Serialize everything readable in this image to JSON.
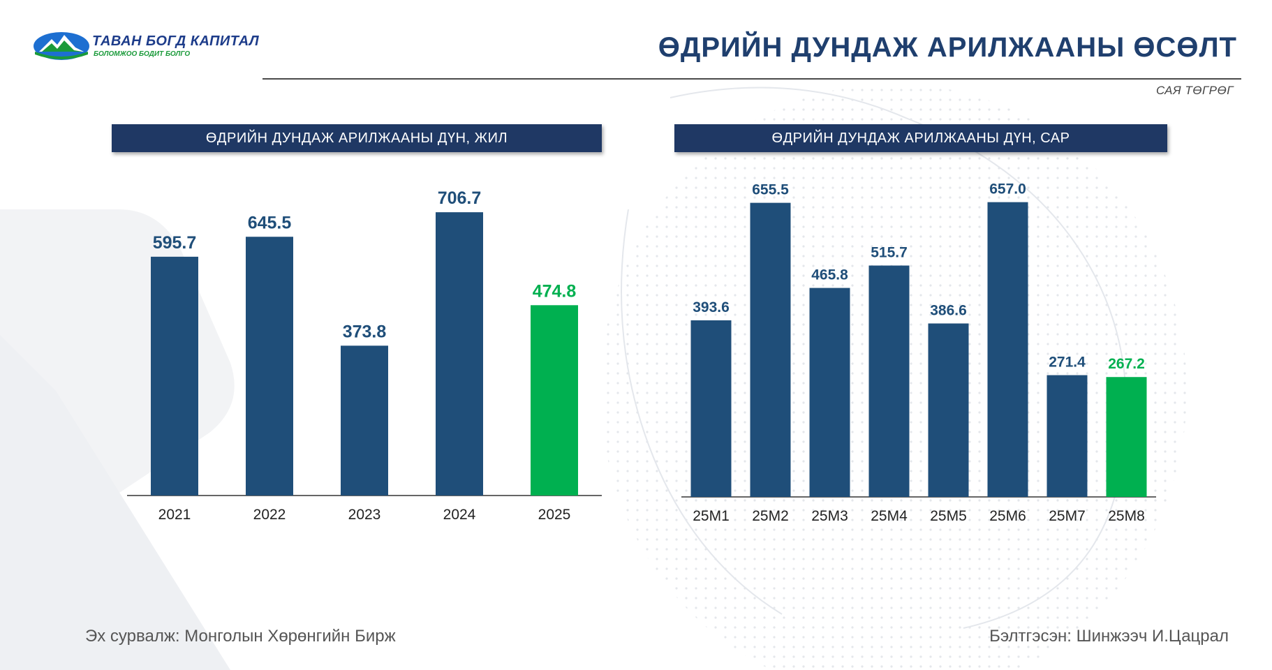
{
  "header": {
    "logo_main": "ТАВАН БОГД КАПИТАЛ",
    "logo_sub": "БОЛОМЖОО БОДИТ БОЛГО",
    "title": "ӨДРИЙН ДУНДАЖ АРИЛЖААНЫ ӨСӨЛТ",
    "unit": "САЯ ТӨГРӨГ"
  },
  "colors": {
    "navy": "#1f4e79",
    "green": "#00b050",
    "banner": "#1f3864",
    "title": "#1f3f6e"
  },
  "chart_data": [
    {
      "type": "bar",
      "title": "ӨДРИЙН ДУНДАЖ АРИЛЖААНЫ ДҮН, ЖИЛ",
      "categories": [
        "2021",
        "2022",
        "2023",
        "2024",
        "2025"
      ],
      "values": [
        595.7,
        645.5,
        373.8,
        706.7,
        474.8
      ],
      "labels": [
        "595.7",
        "645.5",
        "373.8",
        "706.7",
        "474.8"
      ],
      "highlight": [
        false,
        false,
        false,
        false,
        true
      ],
      "ylim": [
        0,
        780
      ],
      "grid": false
    },
    {
      "type": "bar",
      "title": "ӨДРИЙН ДУНДАЖ АРИЛЖААНЫ ДҮН, САР",
      "categories": [
        "25M1",
        "25M2",
        "25M3",
        "25M4",
        "25M5",
        "25M6",
        "25M7",
        "25M8"
      ],
      "values": [
        393.6,
        655.5,
        465.8,
        515.7,
        386.6,
        657.0,
        271.4,
        267.2
      ],
      "labels": [
        "393.6",
        "655.5",
        "465.8",
        "515.7",
        "386.6",
        "657.0",
        "271.4",
        "267.2"
      ],
      "highlight": [
        false,
        false,
        false,
        false,
        false,
        false,
        false,
        true
      ],
      "ylim": [
        0,
        700
      ],
      "grid": false
    }
  ],
  "footer": {
    "source": "Эх сурвалж: Монголын Хөрөнгийн Бирж",
    "prepared": "Бэлтгэсэн: Шинжээч И.Цацрал"
  }
}
